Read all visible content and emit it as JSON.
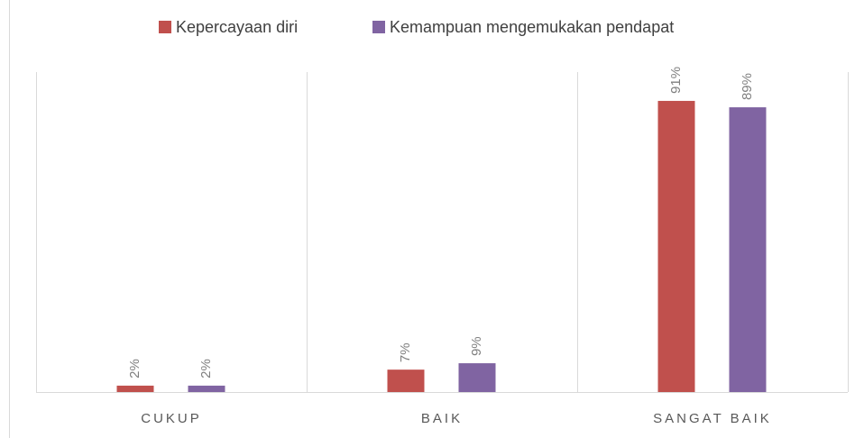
{
  "chart_data": {
    "type": "bar",
    "categories": [
      "CUKUP",
      "BAIK",
      "SANGAT BAIK"
    ],
    "series": [
      {
        "name": "Kepercayaan diri",
        "color": "#c0504d",
        "values": [
          2,
          7,
          91
        ],
        "value_labels": [
          "2%",
          "7%",
          "91%"
        ]
      },
      {
        "name": "Kemampuan mengemukakan pendapat",
        "color": "#8064a2",
        "values": [
          2,
          9,
          89
        ],
        "value_labels": [
          "2%",
          "9%",
          "89%"
        ]
      }
    ],
    "ylim": [
      0,
      100
    ],
    "legend": "top"
  }
}
